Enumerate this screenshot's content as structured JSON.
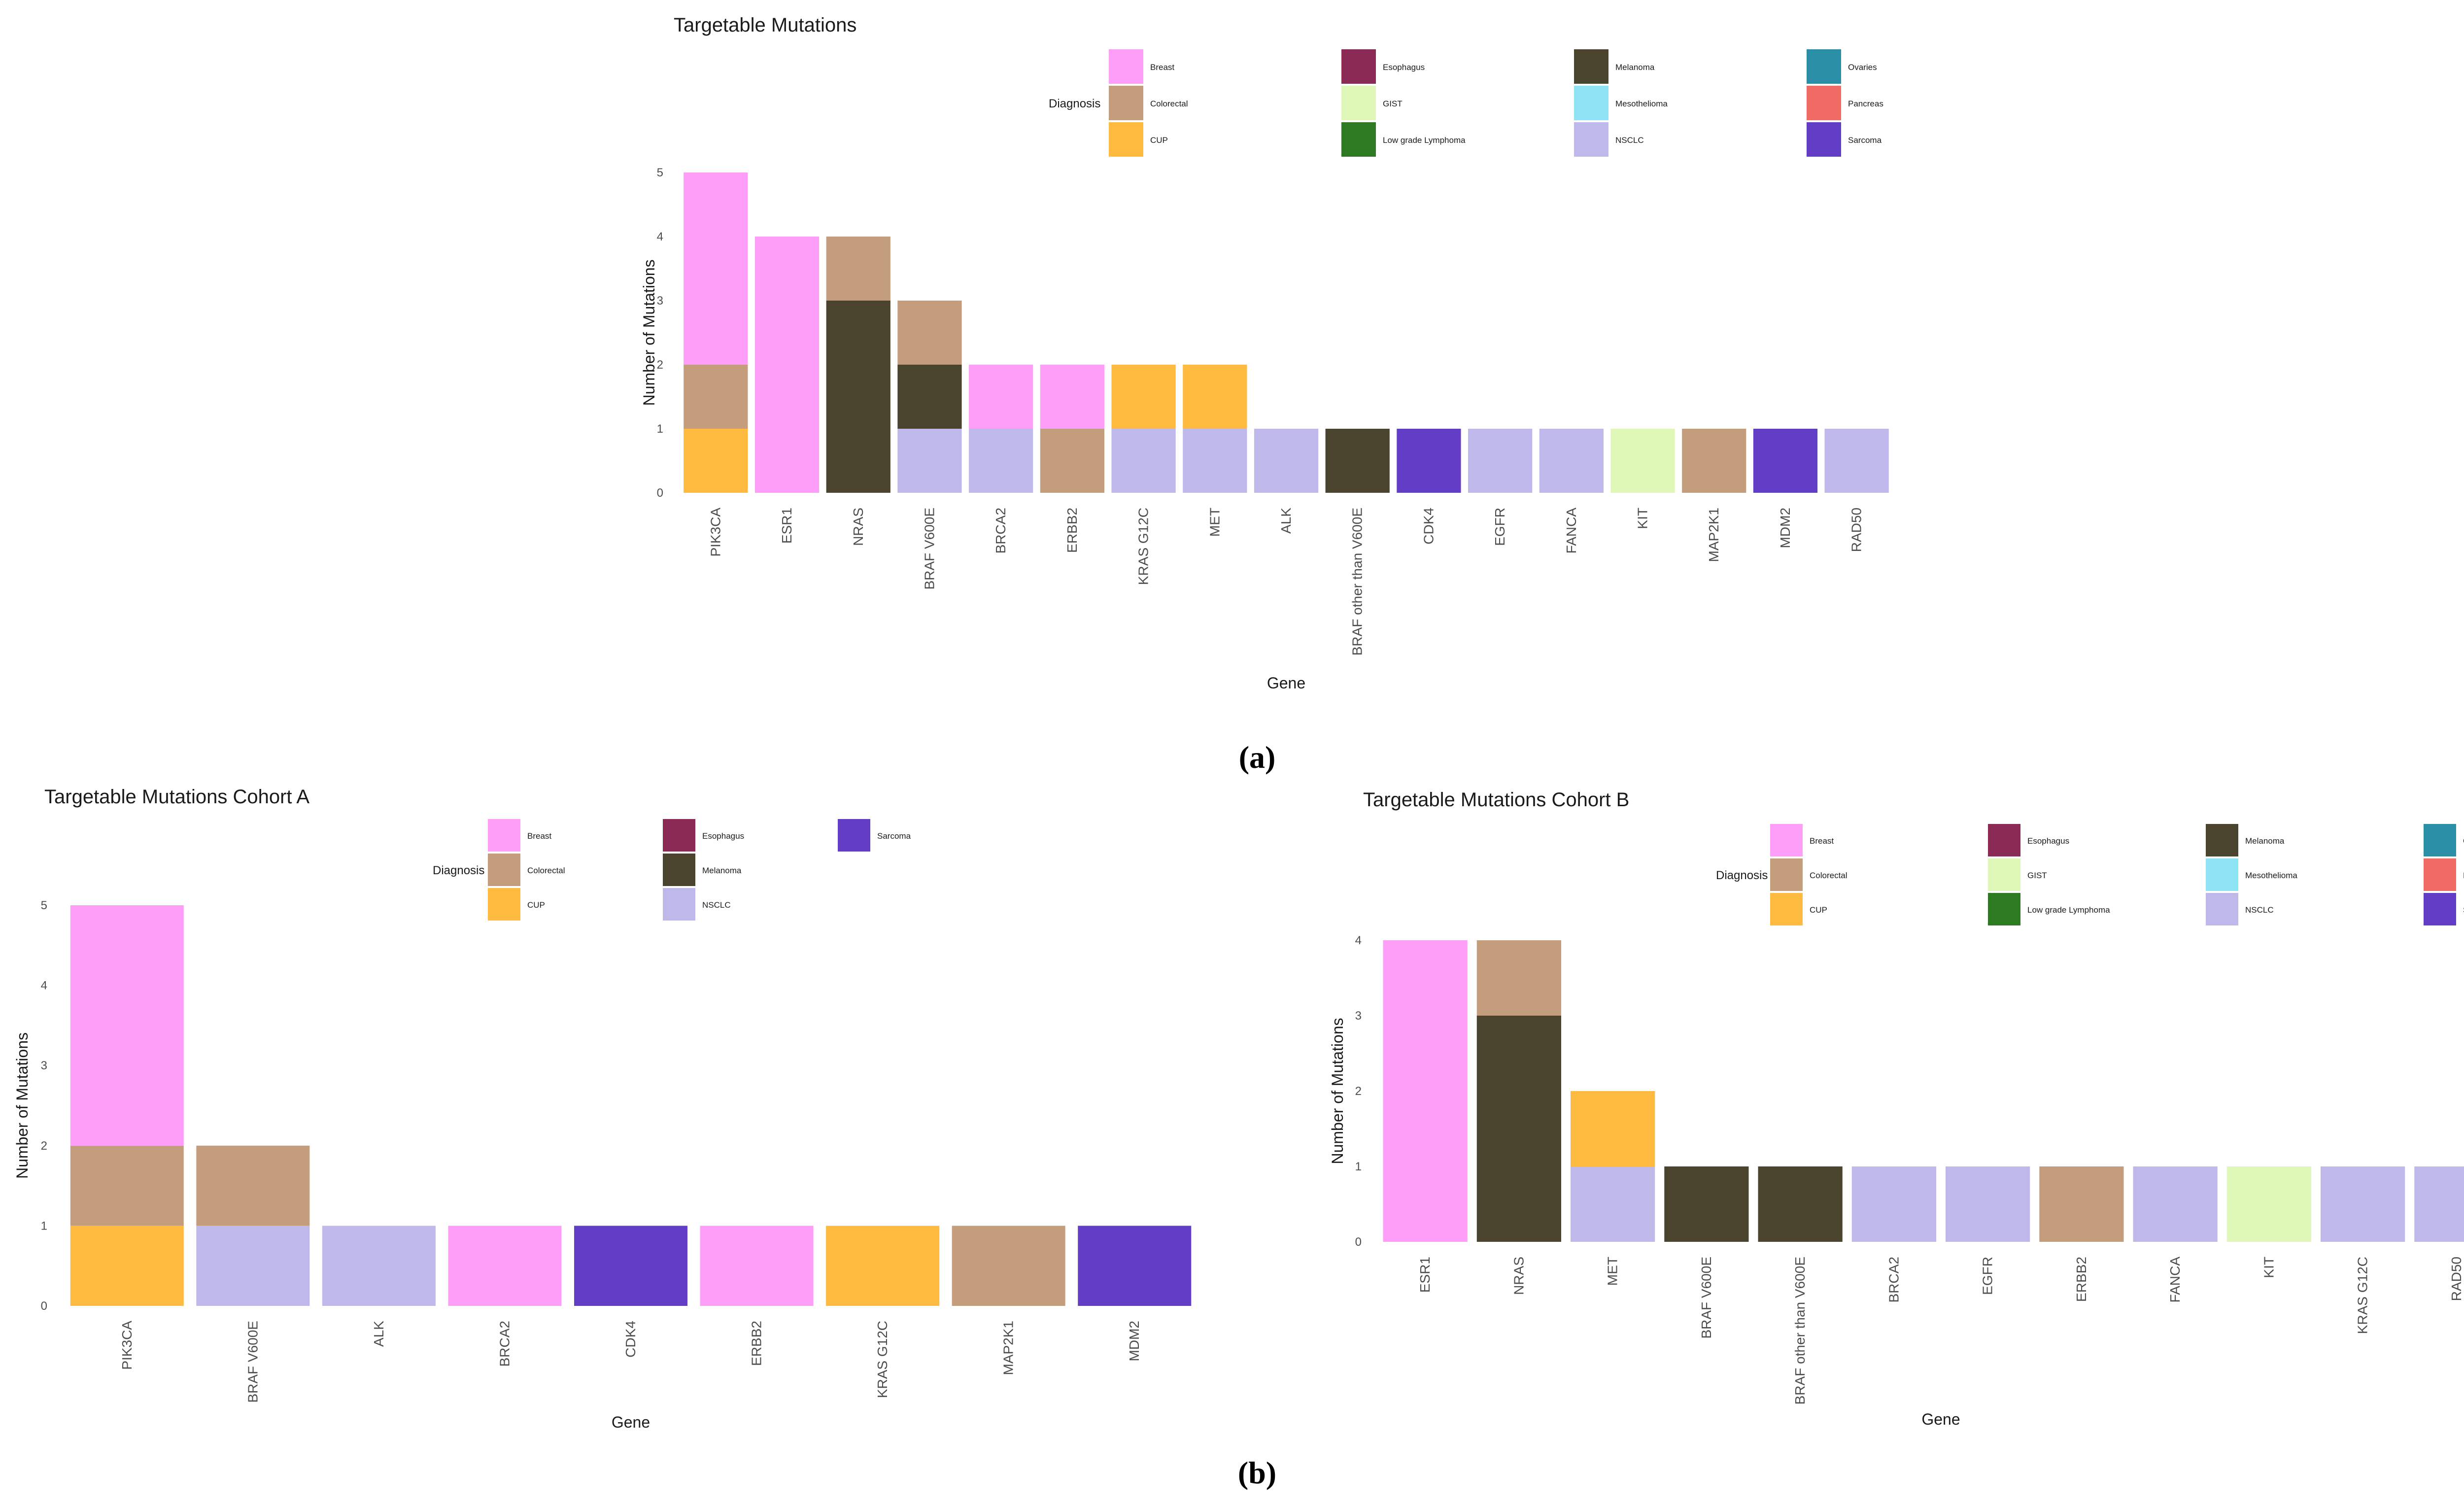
{
  "figure": {
    "panel_a_label": "(a)",
    "panel_b_label": "(b)"
  },
  "palette": {
    "Breast": "#FF9EF8",
    "Esophagus": "#8B2A55",
    "Melanoma": "#4A432D",
    "Ovaries": "#2A8EA6",
    "Colorectal": "#C49E7C",
    "GIST": "#DFF8B7",
    "Mesothelioma": "#8EE3F5",
    "Pancreas": "#F06B63",
    "CUP": "#FFBA40",
    "Low grade Lymphoma": "#2E7A22",
    "NSCLC": "#BFB8EA",
    "Sarcoma": "#623EC6"
  },
  "chart_data": [
    {
      "id": "a",
      "type": "bar",
      "stacked": true,
      "title": "Targetable Mutations",
      "xlabel": "Gene",
      "ylabel": "Number of Mutations",
      "ylim": [
        0,
        5
      ],
      "yticks": [
        0,
        1,
        2,
        3,
        4,
        5
      ],
      "legend_title": "Diagnosis",
      "legend": [
        "Breast",
        "Colorectal",
        "CUP",
        "Esophagus",
        "GIST",
        "Low grade Lymphoma",
        "Melanoma",
        "Mesothelioma",
        "NSCLC",
        "Ovaries",
        "Pancreas",
        "Sarcoma"
      ],
      "categories": [
        "PIK3CA",
        "ESR1",
        "NRAS",
        "BRAF V600E",
        "BRCA2",
        "ERBB2",
        "KRAS G12C",
        "MET",
        "ALK",
        "BRAF other than V600E",
        "CDK4",
        "EGFR",
        "FANCA",
        "KIT",
        "MAP2K1",
        "MDM2",
        "RAD50"
      ],
      "stacks": [
        [
          [
            "CUP",
            1
          ],
          [
            "Colorectal",
            1
          ],
          [
            "Breast",
            3
          ]
        ],
        [
          [
            "Breast",
            4
          ]
        ],
        [
          [
            "Melanoma",
            3
          ],
          [
            "Colorectal",
            1
          ]
        ],
        [
          [
            "NSCLC",
            1
          ],
          [
            "Melanoma",
            1
          ],
          [
            "Colorectal",
            1
          ]
        ],
        [
          [
            "NSCLC",
            1
          ],
          [
            "Breast",
            1
          ]
        ],
        [
          [
            "Colorectal",
            1
          ],
          [
            "Breast",
            1
          ]
        ],
        [
          [
            "NSCLC",
            1
          ],
          [
            "CUP",
            1
          ]
        ],
        [
          [
            "NSCLC",
            1
          ],
          [
            "CUP",
            1
          ]
        ],
        [
          [
            "NSCLC",
            1
          ]
        ],
        [
          [
            "Melanoma",
            1
          ]
        ],
        [
          [
            "Sarcoma",
            1
          ]
        ],
        [
          [
            "NSCLC",
            1
          ]
        ],
        [
          [
            "NSCLC",
            1
          ]
        ],
        [
          [
            "GIST",
            1
          ]
        ],
        [
          [
            "Colorectal",
            1
          ]
        ],
        [
          [
            "Sarcoma",
            1
          ]
        ],
        [
          [
            "NSCLC",
            1
          ]
        ]
      ]
    },
    {
      "id": "b1",
      "type": "bar",
      "stacked": true,
      "title": "Targetable Mutations Cohort A",
      "xlabel": "Gene",
      "ylabel": "Number of Mutations",
      "ylim": [
        0,
        5
      ],
      "yticks": [
        0,
        1,
        2,
        3,
        4,
        5
      ],
      "legend_title": "Diagnosis",
      "legend": [
        "Breast",
        "Colorectal",
        "CUP",
        "Esophagus",
        "Melanoma",
        "NSCLC",
        "Sarcoma"
      ],
      "categories": [
        "PIK3CA",
        "BRAF V600E",
        "ALK",
        "BRCA2",
        "CDK4",
        "ERBB2",
        "KRAS G12C",
        "MAP2K1",
        "MDM2"
      ],
      "stacks": [
        [
          [
            "CUP",
            1
          ],
          [
            "Colorectal",
            1
          ],
          [
            "Breast",
            3
          ]
        ],
        [
          [
            "NSCLC",
            1
          ],
          [
            "Colorectal",
            1
          ]
        ],
        [
          [
            "NSCLC",
            1
          ]
        ],
        [
          [
            "Breast",
            1
          ]
        ],
        [
          [
            "Sarcoma",
            1
          ]
        ],
        [
          [
            "Breast",
            1
          ]
        ],
        [
          [
            "CUP",
            1
          ]
        ],
        [
          [
            "Colorectal",
            1
          ]
        ],
        [
          [
            "Sarcoma",
            1
          ]
        ]
      ]
    },
    {
      "id": "b2",
      "type": "bar",
      "stacked": true,
      "title": "Targetable Mutations Cohort B",
      "xlabel": "Gene",
      "ylabel": "Number of Mutations",
      "ylim": [
        0,
        4
      ],
      "yticks": [
        0,
        1,
        2,
        3,
        4
      ],
      "legend_title": "Diagnosis",
      "legend": [
        "Breast",
        "Colorectal",
        "CUP",
        "Esophagus",
        "GIST",
        "Low grade Lymphoma",
        "Melanoma",
        "Mesothelioma",
        "NSCLC",
        "Ovaries",
        "Pancreas",
        "Sarcoma"
      ],
      "categories": [
        "ESR1",
        "NRAS",
        "MET",
        "BRAF V600E",
        "BRAF other than V600E",
        "BRCA2",
        "EGFR",
        "ERBB2",
        "FANCA",
        "KIT",
        "KRAS G12C",
        "RAD50"
      ],
      "stacks": [
        [
          [
            "Breast",
            4
          ]
        ],
        [
          [
            "Melanoma",
            3
          ],
          [
            "Colorectal",
            1
          ]
        ],
        [
          [
            "NSCLC",
            1
          ],
          [
            "CUP",
            1
          ]
        ],
        [
          [
            "Melanoma",
            1
          ]
        ],
        [
          [
            "Melanoma",
            1
          ]
        ],
        [
          [
            "NSCLC",
            1
          ]
        ],
        [
          [
            "NSCLC",
            1
          ]
        ],
        [
          [
            "Colorectal",
            1
          ]
        ],
        [
          [
            "NSCLC",
            1
          ]
        ],
        [
          [
            "GIST",
            1
          ]
        ],
        [
          [
            "NSCLC",
            1
          ]
        ],
        [
          [
            "NSCLC",
            1
          ]
        ]
      ]
    }
  ]
}
